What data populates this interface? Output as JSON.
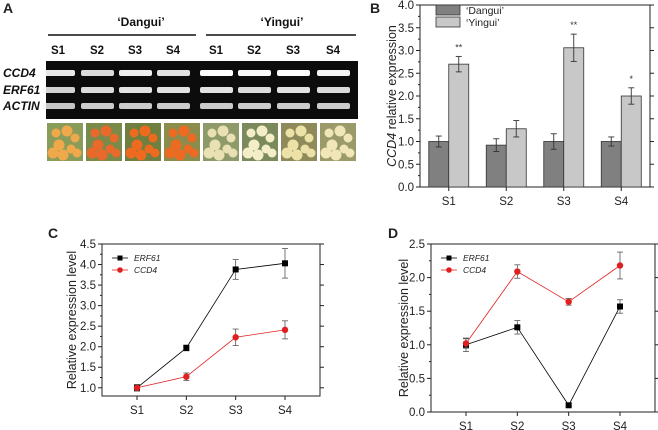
{
  "panel_a": {
    "letter": "A",
    "cultivars": [
      "‘Dangui’",
      "‘Yingui’"
    ],
    "stages": [
      "S1",
      "S2",
      "S3",
      "S4",
      "S1",
      "S2",
      "S3",
      "S4"
    ],
    "gene_labels": [
      "CCD4",
      "ERF61",
      "ACTIN"
    ]
  },
  "colors": {
    "dangui_bar": "#808080",
    "yingui_bar": "#c8c8c8",
    "erf61_line": "#000000",
    "ccd4_line": "#e02020"
  },
  "chart_data": [
    {
      "panel": "B",
      "type": "bar",
      "title": "",
      "xlabel": "",
      "ylabel": "CCD4 relative expression",
      "ylim": [
        0,
        4.0
      ],
      "yticks": [
        "0.0",
        "0.5",
        "1.0",
        "1.5",
        "2.0",
        "2.5",
        "3.0",
        "3.5",
        "4.0"
      ],
      "categories": [
        "S1",
        "S2",
        "S3",
        "S4"
      ],
      "series": [
        {
          "name": "‘Dangui’",
          "values": [
            1.0,
            0.92,
            1.0,
            1.0
          ],
          "errors": [
            0.12,
            0.14,
            0.17,
            0.1
          ],
          "sig": [
            "",
            "",
            "",
            ""
          ]
        },
        {
          "name": "‘Yingui’",
          "values": [
            2.7,
            1.28,
            3.06,
            2.0
          ],
          "errors": [
            0.17,
            0.18,
            0.3,
            0.18
          ],
          "sig": [
            "**",
            "",
            "**",
            "*"
          ]
        }
      ],
      "legend": "top-left"
    },
    {
      "panel": "C",
      "type": "line",
      "title": "",
      "xlabel": "",
      "ylabel": "Relative expression level",
      "ylim": [
        0.8,
        4.5
      ],
      "yticks": [
        "1.0",
        "1.5",
        "2.0",
        "2.5",
        "3.0",
        "3.5",
        "4.0",
        "4.5"
      ],
      "categories": [
        "S1",
        "S2",
        "S3",
        "S4"
      ],
      "series": [
        {
          "name": "ERF61",
          "values": [
            1.0,
            1.97,
            3.88,
            4.03
          ],
          "errors": [
            0.08,
            0.07,
            0.24,
            0.36
          ],
          "marker": "square"
        },
        {
          "name": "CCD4",
          "values": [
            1.0,
            1.27,
            2.23,
            2.41
          ],
          "errors": [
            0.08,
            0.09,
            0.2,
            0.22
          ],
          "marker": "circle"
        }
      ],
      "legend": "top-left"
    },
    {
      "panel": "D",
      "type": "line",
      "title": "",
      "xlabel": "",
      "ylabel": "Relative expression level",
      "ylim": [
        0.0,
        2.5
      ],
      "yticks": [
        "0.0",
        "0.5",
        "1.0",
        "1.5",
        "2.0",
        "2.5"
      ],
      "categories": [
        "S1",
        "S2",
        "S3",
        "S4"
      ],
      "series": [
        {
          "name": "ERF61",
          "values": [
            1.0,
            1.26,
            0.1,
            1.57
          ],
          "errors": [
            0.1,
            0.1,
            0.02,
            0.1
          ],
          "marker": "square"
        },
        {
          "name": "CCD4",
          "values": [
            1.02,
            2.09,
            1.64,
            2.18
          ],
          "errors": [
            0.07,
            0.1,
            0.05,
            0.2
          ],
          "marker": "circle"
        }
      ],
      "legend": "top-left"
    }
  ]
}
